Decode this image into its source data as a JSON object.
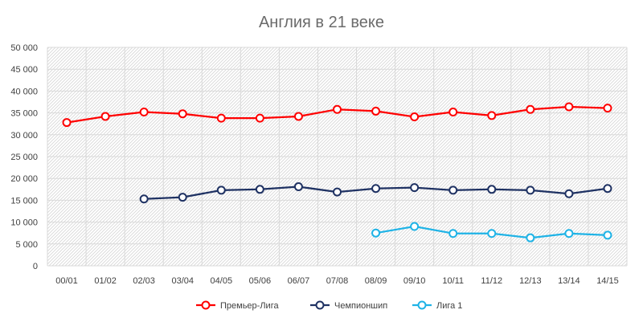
{
  "chart_data": {
    "type": "line",
    "title": "Англия в 21 веке",
    "xlabel": "",
    "ylabel": "",
    "ylim": [
      0,
      50000
    ],
    "y_ticks": [
      "0",
      "5 000",
      "10 000",
      "15 000",
      "20 000",
      "25 000",
      "30 000",
      "35 000",
      "40 000",
      "45 000",
      "50 000"
    ],
    "y_tick_values": [
      0,
      5000,
      10000,
      15000,
      20000,
      25000,
      30000,
      35000,
      40000,
      45000,
      50000
    ],
    "categories": [
      "00/01",
      "01/02",
      "02/03",
      "03/04",
      "04/05",
      "05/06",
      "06/07",
      "07/08",
      "08/09",
      "09/10",
      "10/11",
      "11/12",
      "12/13",
      "13/14",
      "14/15"
    ],
    "grid": true,
    "legend_position": "bottom",
    "series": [
      {
        "name": "Премьер-Лига",
        "color": "#ff0000",
        "values": [
          32800,
          34200,
          35200,
          34800,
          33800,
          33800,
          34200,
          35800,
          35400,
          34100,
          35200,
          34400,
          35800,
          36400,
          36100
        ]
      },
      {
        "name": "Чемпионшип",
        "color": "#1f3263",
        "values": [
          null,
          null,
          15300,
          15700,
          17300,
          17500,
          18100,
          16900,
          17700,
          17900,
          17300,
          17500,
          17300,
          16500,
          17700
        ]
      },
      {
        "name": "Лига 1",
        "color": "#1fb3e6",
        "values": [
          null,
          null,
          null,
          null,
          null,
          null,
          null,
          null,
          7500,
          9000,
          7400,
          7400,
          6400,
          7400,
          7000
        ]
      }
    ]
  }
}
